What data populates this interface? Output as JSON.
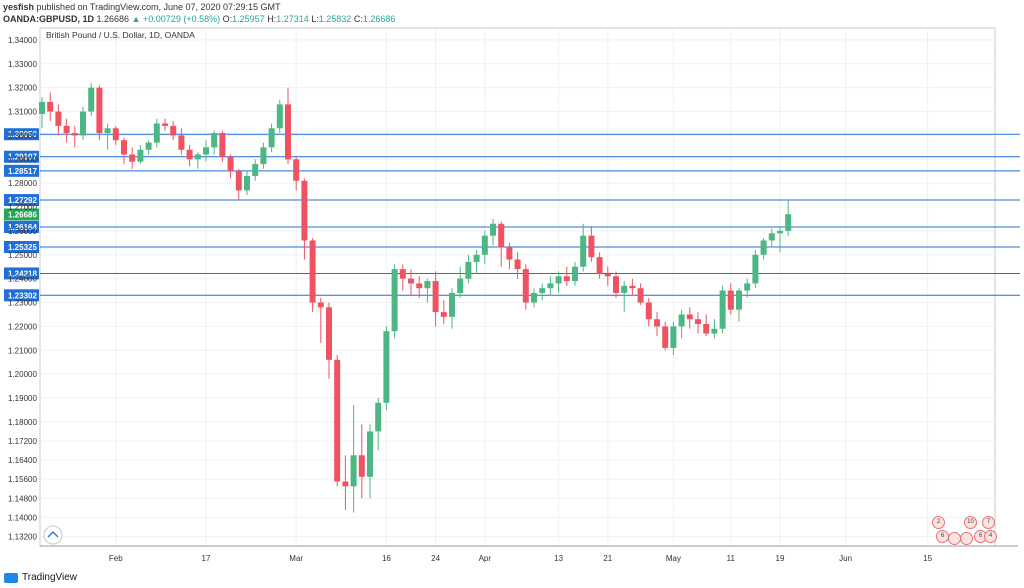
{
  "header": {
    "user": "yesfish",
    "published": "published on TradingView.com, June 07, 2020 07:29:15 GMT",
    "symbol": "OANDA:GBPUSD, 1D",
    "last": "1.26686",
    "change": "+0.00729 (+0.58%)",
    "o_label": "O:",
    "o": "1.25957",
    "h_label": "H:",
    "h": "1.27314",
    "l_label": "L:",
    "l": "1.25832",
    "c_label": "C:",
    "c": "1.26686"
  },
  "footer": {
    "brand": "TradingView"
  },
  "colors": {
    "up": "#4cb782",
    "down": "#ef5361",
    "level": "#1e6fd9",
    "last": "#26a65b"
  },
  "chart_data": {
    "type": "candlestick",
    "title": "British Pound / U.S. Dollar, 1D, OANDA",
    "ylim": [
      1.128,
      1.345
    ],
    "y_ticks": [
      "1.34000",
      "1.33000",
      "1.32000",
      "1.31000",
      "1.30000",
      "1.29000",
      "1.28000",
      "1.27000",
      "1.26000",
      "1.25000",
      "1.24000",
      "1.23000",
      "1.22000",
      "1.21000",
      "1.20000",
      "1.19000",
      "1.18000",
      "1.17200",
      "1.16400",
      "1.15600",
      "1.14800",
      "1.14000",
      "1.13200"
    ],
    "x_ticks": [
      {
        "label": "Feb",
        "i": 9
      },
      {
        "label": "17",
        "i": 20
      },
      {
        "label": "Mar",
        "i": 31
      },
      {
        "label": "16",
        "i": 42
      },
      {
        "label": "24",
        "i": 48
      },
      {
        "label": "Apr",
        "i": 54
      },
      {
        "label": "13",
        "i": 63
      },
      {
        "label": "21",
        "i": 69
      },
      {
        "label": "May",
        "i": 77
      },
      {
        "label": "11",
        "i": 84
      },
      {
        "label": "19",
        "i": 90
      },
      {
        "label": "Jun",
        "i": 98
      },
      {
        "label": "15",
        "i": 108
      }
    ],
    "levels": [
      "1.30050",
      "1.29107",
      "1.28517",
      "1.27292",
      "1.26164",
      "1.25325",
      "1.24218",
      "1.23302"
    ],
    "last_price": "1.26686",
    "candles": [
      [
        1.309,
        1.316,
        1.303,
        1.314
      ],
      [
        1.314,
        1.318,
        1.306,
        1.31
      ],
      [
        1.31,
        1.313,
        1.3,
        1.304
      ],
      [
        1.304,
        1.307,
        1.297,
        1.301
      ],
      [
        1.301,
        1.304,
        1.295,
        1.3
      ],
      [
        1.3,
        1.312,
        1.298,
        1.31
      ],
      [
        1.31,
        1.322,
        1.308,
        1.32
      ],
      [
        1.32,
        1.321,
        1.298,
        1.301
      ],
      [
        1.301,
        1.305,
        1.294,
        1.303
      ],
      [
        1.303,
        1.304,
        1.296,
        1.298
      ],
      [
        1.298,
        1.299,
        1.288,
        1.292
      ],
      [
        1.292,
        1.295,
        1.286,
        1.289
      ],
      [
        1.289,
        1.296,
        1.288,
        1.294
      ],
      [
        1.294,
        1.298,
        1.292,
        1.297
      ],
      [
        1.297,
        1.307,
        1.295,
        1.305
      ],
      [
        1.305,
        1.307,
        1.302,
        1.304
      ],
      [
        1.304,
        1.306,
        1.298,
        1.3
      ],
      [
        1.3,
        1.303,
        1.292,
        1.294
      ],
      [
        1.294,
        1.296,
        1.287,
        1.29
      ],
      [
        1.29,
        1.293,
        1.286,
        1.292
      ],
      [
        1.292,
        1.298,
        1.289,
        1.295
      ],
      [
        1.295,
        1.302,
        1.292,
        1.301
      ],
      [
        1.301,
        1.302,
        1.289,
        1.291
      ],
      [
        1.291,
        1.292,
        1.282,
        1.285
      ],
      [
        1.285,
        1.286,
        1.273,
        1.277
      ],
      [
        1.277,
        1.285,
        1.275,
        1.283
      ],
      [
        1.283,
        1.29,
        1.281,
        1.288
      ],
      [
        1.288,
        1.297,
        1.286,
        1.295
      ],
      [
        1.295,
        1.305,
        1.293,
        1.303
      ],
      [
        1.303,
        1.315,
        1.301,
        1.313
      ],
      [
        1.313,
        1.32,
        1.288,
        1.29
      ],
      [
        1.29,
        1.291,
        1.277,
        1.281
      ],
      [
        1.281,
        1.282,
        1.248,
        1.256
      ],
      [
        1.256,
        1.257,
        1.226,
        1.23
      ],
      [
        1.23,
        1.232,
        1.213,
        1.228
      ],
      [
        1.228,
        1.23,
        1.198,
        1.206
      ],
      [
        1.206,
        1.208,
        1.153,
        1.155
      ],
      [
        1.155,
        1.166,
        1.143,
        1.153
      ],
      [
        1.153,
        1.187,
        1.142,
        1.166
      ],
      [
        1.166,
        1.179,
        1.148,
        1.157
      ],
      [
        1.157,
        1.179,
        1.148,
        1.176
      ],
      [
        1.176,
        1.19,
        1.168,
        1.188
      ],
      [
        1.188,
        1.22,
        1.185,
        1.218
      ],
      [
        1.218,
        1.246,
        1.215,
        1.244
      ],
      [
        1.244,
        1.246,
        1.235,
        1.24
      ],
      [
        1.24,
        1.244,
        1.233,
        1.238
      ],
      [
        1.238,
        1.241,
        1.232,
        1.236
      ],
      [
        1.236,
        1.24,
        1.23,
        1.239
      ],
      [
        1.239,
        1.243,
        1.22,
        1.226
      ],
      [
        1.226,
        1.231,
        1.221,
        1.224
      ],
      [
        1.224,
        1.236,
        1.219,
        1.234
      ],
      [
        1.234,
        1.245,
        1.232,
        1.24
      ],
      [
        1.24,
        1.25,
        1.238,
        1.247
      ],
      [
        1.247,
        1.252,
        1.242,
        1.25
      ],
      [
        1.25,
        1.26,
        1.246,
        1.258
      ],
      [
        1.258,
        1.265,
        1.254,
        1.263
      ],
      [
        1.263,
        1.264,
        1.245,
        1.253
      ],
      [
        1.253,
        1.255,
        1.244,
        1.248
      ],
      [
        1.248,
        1.251,
        1.24,
        1.244
      ],
      [
        1.244,
        1.246,
        1.227,
        1.23
      ],
      [
        1.23,
        1.236,
        1.228,
        1.234
      ],
      [
        1.234,
        1.238,
        1.231,
        1.236
      ],
      [
        1.236,
        1.241,
        1.233,
        1.238
      ],
      [
        1.238,
        1.243,
        1.234,
        1.241
      ],
      [
        1.241,
        1.245,
        1.237,
        1.239
      ],
      [
        1.239,
        1.247,
        1.237,
        1.245
      ],
      [
        1.245,
        1.263,
        1.243,
        1.258
      ],
      [
        1.258,
        1.262,
        1.247,
        1.249
      ],
      [
        1.249,
        1.251,
        1.24,
        1.242
      ],
      [
        1.242,
        1.245,
        1.237,
        1.241
      ],
      [
        1.241,
        1.243,
        1.232,
        1.234
      ],
      [
        1.234,
        1.239,
        1.226,
        1.237
      ],
      [
        1.237,
        1.24,
        1.233,
        1.236
      ],
      [
        1.236,
        1.238,
        1.229,
        1.23
      ],
      [
        1.23,
        1.232,
        1.22,
        1.223
      ],
      [
        1.223,
        1.226,
        1.216,
        1.22
      ],
      [
        1.22,
        1.222,
        1.21,
        1.211
      ],
      [
        1.211,
        1.222,
        1.208,
        1.22
      ],
      [
        1.22,
        1.227,
        1.215,
        1.225
      ],
      [
        1.225,
        1.228,
        1.219,
        1.223
      ],
      [
        1.223,
        1.226,
        1.217,
        1.221
      ],
      [
        1.221,
        1.225,
        1.216,
        1.217
      ],
      [
        1.217,
        1.223,
        1.215,
        1.219
      ],
      [
        1.219,
        1.237,
        1.217,
        1.235
      ],
      [
        1.235,
        1.238,
        1.225,
        1.227
      ],
      [
        1.227,
        1.236,
        1.222,
        1.235
      ],
      [
        1.235,
        1.24,
        1.232,
        1.238
      ],
      [
        1.238,
        1.252,
        1.236,
        1.25
      ],
      [
        1.25,
        1.257,
        1.248,
        1.256
      ],
      [
        1.256,
        1.261,
        1.253,
        1.259
      ],
      [
        1.259,
        1.262,
        1.251,
        1.26
      ],
      [
        1.26,
        1.273,
        1.258,
        1.267
      ]
    ]
  }
}
